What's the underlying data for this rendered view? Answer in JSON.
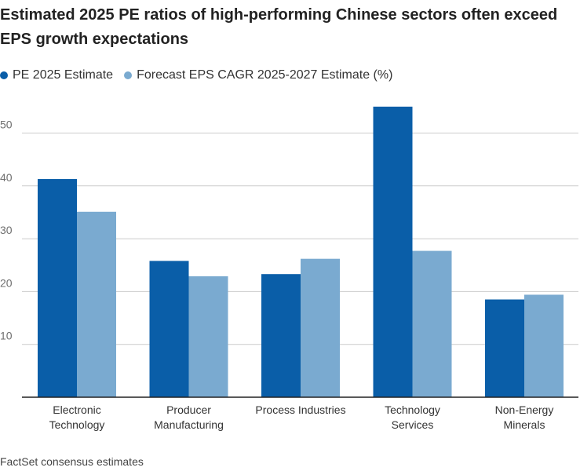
{
  "colors": {
    "series_pe": "#0a5ea8",
    "series_eps": "#7aaad0",
    "grid": "#cccccc",
    "axis": "#222222"
  },
  "chart_data": {
    "type": "bar",
    "title": "Estimated 2025 PE ratios of high-performing Chinese sectors often exceed EPS growth expectations",
    "categories": [
      [
        "Electronic",
        "Technology"
      ],
      [
        "Producer",
        "Manufacturing"
      ],
      [
        "Process Industries"
      ],
      [
        "Technology",
        "Services"
      ],
      [
        "Non-Energy",
        "Minerals"
      ]
    ],
    "series": [
      {
        "name": "PE 2025 Estimate",
        "values": [
          41.3,
          25.8,
          23.3,
          55.0,
          18.5
        ]
      },
      {
        "name": "Forecast EPS CAGR 2025-2027 Estimate (%)",
        "values": [
          35.1,
          22.9,
          26.2,
          27.7,
          19.4
        ]
      }
    ],
    "yticks": [
      10,
      20,
      30,
      40,
      50
    ],
    "ylim": [
      0,
      58
    ],
    "grid": true,
    "legend": "top-left",
    "xlabel": "",
    "ylabel": ""
  },
  "source": "FactSet consensus estimates"
}
